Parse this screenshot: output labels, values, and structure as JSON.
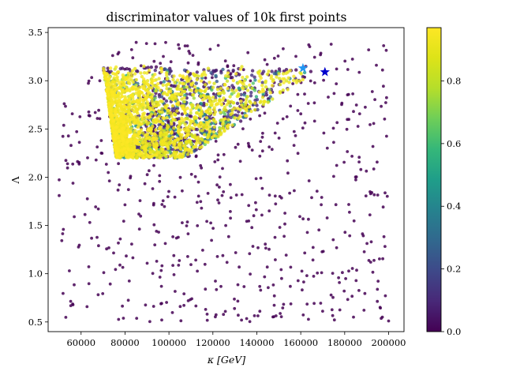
{
  "chart_data": {
    "type": "scatter",
    "title": "discriminator values of 10k first points",
    "xlabel": "κ [GeV]",
    "ylabel": "Λ",
    "xlim": [
      45000,
      207000
    ],
    "ylim": [
      0.4,
      3.55
    ],
    "xticks": [
      60000,
      80000,
      100000,
      120000,
      140000,
      160000,
      180000,
      200000
    ],
    "xtick_labels": [
      "60000",
      "80000",
      "100000",
      "120000",
      "140000",
      "160000",
      "180000",
      "200000"
    ],
    "yticks": [
      0.5,
      1.0,
      1.5,
      2.0,
      2.5,
      3.0,
      3.5
    ],
    "ytick_labels": [
      "0.5",
      "1.0",
      "1.5",
      "2.0",
      "2.5",
      "3.0",
      "3.5"
    ],
    "colormap": "viridis",
    "colorbar": {
      "range": [
        0.0,
        0.97
      ],
      "ticks": [
        0.0,
        0.2,
        0.4,
        0.6,
        0.8
      ],
      "tick_labels": [
        "0.0",
        "0.2",
        "0.4",
        "0.6",
        "0.8"
      ]
    },
    "background_points": {
      "description": "uniform scatter, discriminator ~0",
      "x_range": [
        50000,
        200000
      ],
      "y_range": [
        0.5,
        3.4
      ],
      "count": 600,
      "value": 0.0
    },
    "dense_region": {
      "description": "high-density cluster with high discriminator values",
      "x_range": [
        70000,
        170000
      ],
      "y_range": [
        2.2,
        3.15
      ],
      "count": 2600
    },
    "markers": [
      {
        "name": "star-light",
        "x": 161000,
        "y": 3.13,
        "color": "#2196f3"
      },
      {
        "name": "star-dark",
        "x": 171000,
        "y": 3.09,
        "color": "#0000cc"
      }
    ]
  }
}
